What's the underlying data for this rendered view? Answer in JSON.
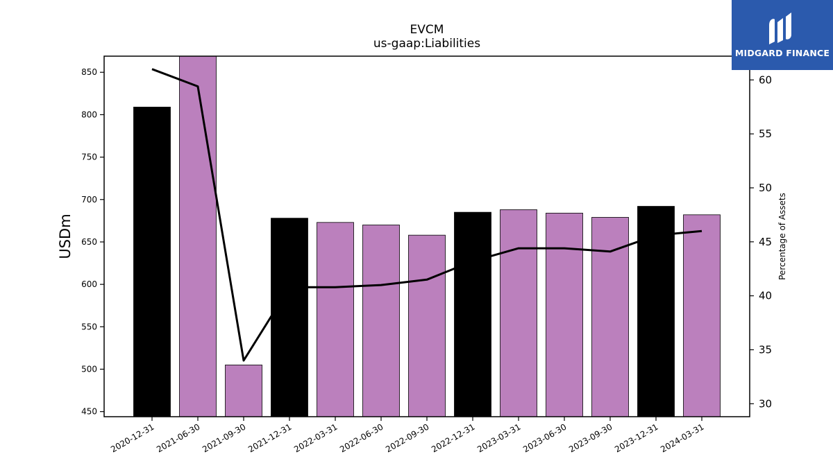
{
  "chart_data": {
    "type": "bar",
    "title": "EVCM",
    "subtitle": "us-gaap:Liabilities",
    "ylabel": "USDm",
    "y2label": "Percentage of Assets",
    "categories": [
      "2020-12-31",
      "2021-06-30",
      "2021-09-30",
      "2021-12-31",
      "2022-03-31",
      "2022-06-30",
      "2022-09-30",
      "2022-12-31",
      "2023-03-31",
      "2023-06-30",
      "2023-09-30",
      "2023-12-31",
      "2024-03-31"
    ],
    "series": [
      {
        "type": "bar",
        "values": [
          809,
          870,
          505,
          678,
          673,
          670,
          658,
          685,
          688,
          684,
          679,
          692,
          682
        ],
        "colors": [
          "#000000",
          "#bb80bd",
          "#bb80bd",
          "#000000",
          "#bb80bd",
          "#bb80bd",
          "#bb80bd",
          "#000000",
          "#bb80bd",
          "#bb80bd",
          "#bb80bd",
          "#000000",
          "#bb80bd"
        ]
      },
      {
        "type": "line",
        "axis": "right",
        "values": [
          61.0,
          59.4,
          34.0,
          40.8,
          40.8,
          41.0,
          41.5,
          43.2,
          44.4,
          44.4,
          44.1,
          45.6,
          46.0
        ],
        "color": "#000000"
      }
    ],
    "ylim": [
      444,
      869
    ],
    "y2lim": [
      28.8,
      62.2
    ],
    "yticks": [
      "450",
      "500",
      "550",
      "600",
      "650",
      "700",
      "750",
      "800",
      "850"
    ],
    "y2ticks": [
      "30",
      "35",
      "40",
      "45",
      "50",
      "55",
      "60"
    ]
  },
  "logo": {
    "text": "MIDGARD FINANCE",
    "background": "#2b5aad"
  }
}
